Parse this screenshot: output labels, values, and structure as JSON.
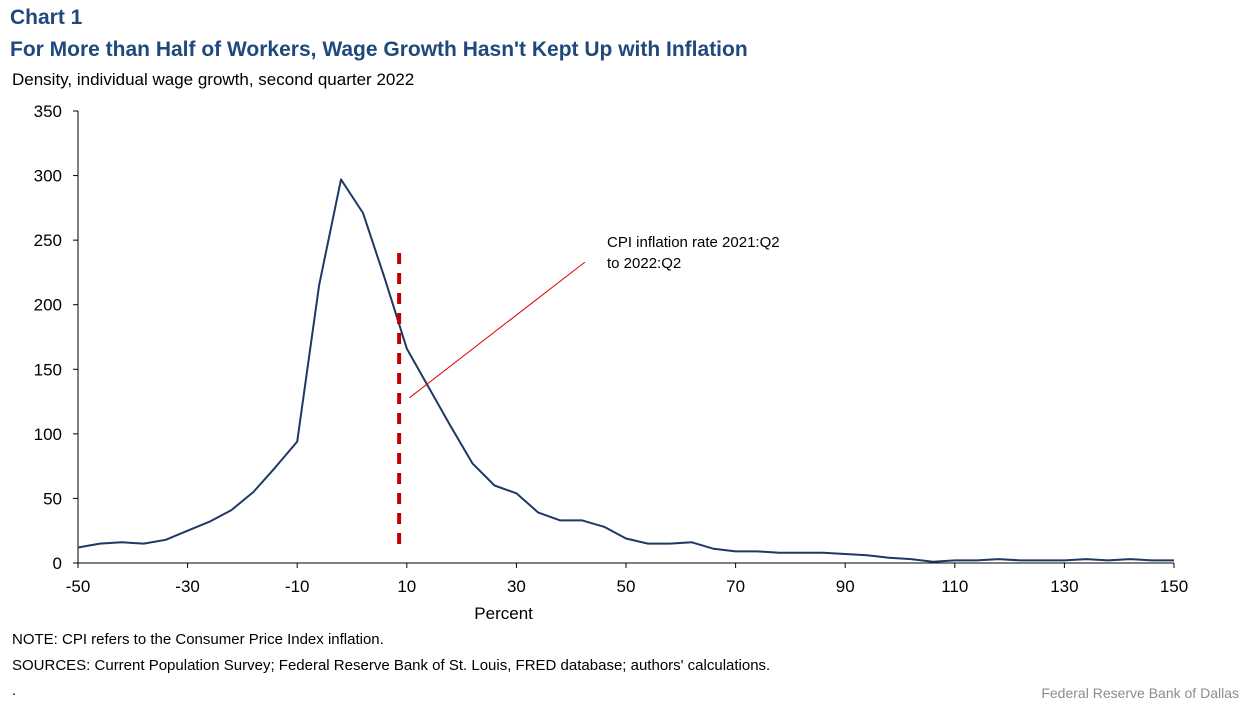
{
  "header": {
    "chart_number": "Chart 1",
    "title": "For More than Half of Workers, Wage Growth Hasn't Kept Up with Inflation",
    "subtitle": "Density, individual  wage growth, second quarter 2022"
  },
  "chart_data": {
    "type": "line",
    "title": "For More than Half of Workers, Wage Growth Hasn't Kept Up with Inflation",
    "subtitle": "Density, individual  wage growth, second quarter 2022",
    "xlabel": "Percent",
    "ylabel": "",
    "xlim": [
      -50,
      150
    ],
    "ylim": [
      0,
      350
    ],
    "x_ticks": [
      -50,
      -30,
      -10,
      10,
      30,
      50,
      70,
      90,
      110,
      130,
      150
    ],
    "y_ticks": [
      0,
      50,
      100,
      150,
      200,
      250,
      300,
      350
    ],
    "grid": false,
    "legend": "none",
    "colors": {
      "series": "#1f3864",
      "reference_line": "#c00000",
      "leader_line": "#e00000"
    },
    "series": [
      {
        "values": [
          {
            "x": -50,
            "y": 12
          },
          {
            "x": -46,
            "y": 15
          },
          {
            "x": -42,
            "y": 16
          },
          {
            "x": -38,
            "y": 15
          },
          {
            "x": -34,
            "y": 18
          },
          {
            "x": -30,
            "y": 25
          },
          {
            "x": -26,
            "y": 32
          },
          {
            "x": -22,
            "y": 41
          },
          {
            "x": -18,
            "y": 55
          },
          {
            "x": -14,
            "y": 74
          },
          {
            "x": -10,
            "y": 94
          },
          {
            "x": -6,
            "y": 215
          },
          {
            "x": -2,
            "y": 297
          },
          {
            "x": 2,
            "y": 271
          },
          {
            "x": 6,
            "y": 220
          },
          {
            "x": 10,
            "y": 166
          },
          {
            "x": 14,
            "y": 136
          },
          {
            "x": 18,
            "y": 106
          },
          {
            "x": 22,
            "y": 77
          },
          {
            "x": 26,
            "y": 60
          },
          {
            "x": 30,
            "y": 54
          },
          {
            "x": 34,
            "y": 39
          },
          {
            "x": 38,
            "y": 33
          },
          {
            "x": 42,
            "y": 33
          },
          {
            "x": 46,
            "y": 28
          },
          {
            "x": 50,
            "y": 19
          },
          {
            "x": 54,
            "y": 15
          },
          {
            "x": 58,
            "y": 15
          },
          {
            "x": 62,
            "y": 16
          },
          {
            "x": 66,
            "y": 11
          },
          {
            "x": 70,
            "y": 9
          },
          {
            "x": 74,
            "y": 9
          },
          {
            "x": 78,
            "y": 8
          },
          {
            "x": 82,
            "y": 8
          },
          {
            "x": 86,
            "y": 8
          },
          {
            "x": 90,
            "y": 7
          },
          {
            "x": 94,
            "y": 6
          },
          {
            "x": 98,
            "y": 4
          },
          {
            "x": 102,
            "y": 3
          },
          {
            "x": 106,
            "y": 1
          },
          {
            "x": 110,
            "y": 2
          },
          {
            "x": 114,
            "y": 2
          },
          {
            "x": 118,
            "y": 3
          },
          {
            "x": 122,
            "y": 2
          },
          {
            "x": 126,
            "y": 2
          },
          {
            "x": 130,
            "y": 2
          },
          {
            "x": 134,
            "y": 3
          },
          {
            "x": 138,
            "y": 2
          },
          {
            "x": 142,
            "y": 3
          },
          {
            "x": 146,
            "y": 2
          },
          {
            "x": 150,
            "y": 2
          }
        ]
      }
    ],
    "reference_line": {
      "x": 8.6,
      "y_top": 240,
      "y_bottom": 10,
      "style": "dashed"
    },
    "annotation": {
      "lines": [
        "CPI inflation rate 2021:Q2",
        "to 2022:Q2"
      ],
      "leader_from": {
        "x": 10.5,
        "y": 128
      },
      "leader_to": {
        "x": 42.5,
        "y": 233
      }
    }
  },
  "notes": {
    "note": "NOTE: CPI refers to the Consumer Price Index inflation.",
    "sources": "SOURCES: Current Population Survey; Federal Reserve Bank of St. Louis, FRED database; authors' calculations.",
    "dot": "."
  },
  "credit": "Federal Reserve  Bank of Dallas"
}
